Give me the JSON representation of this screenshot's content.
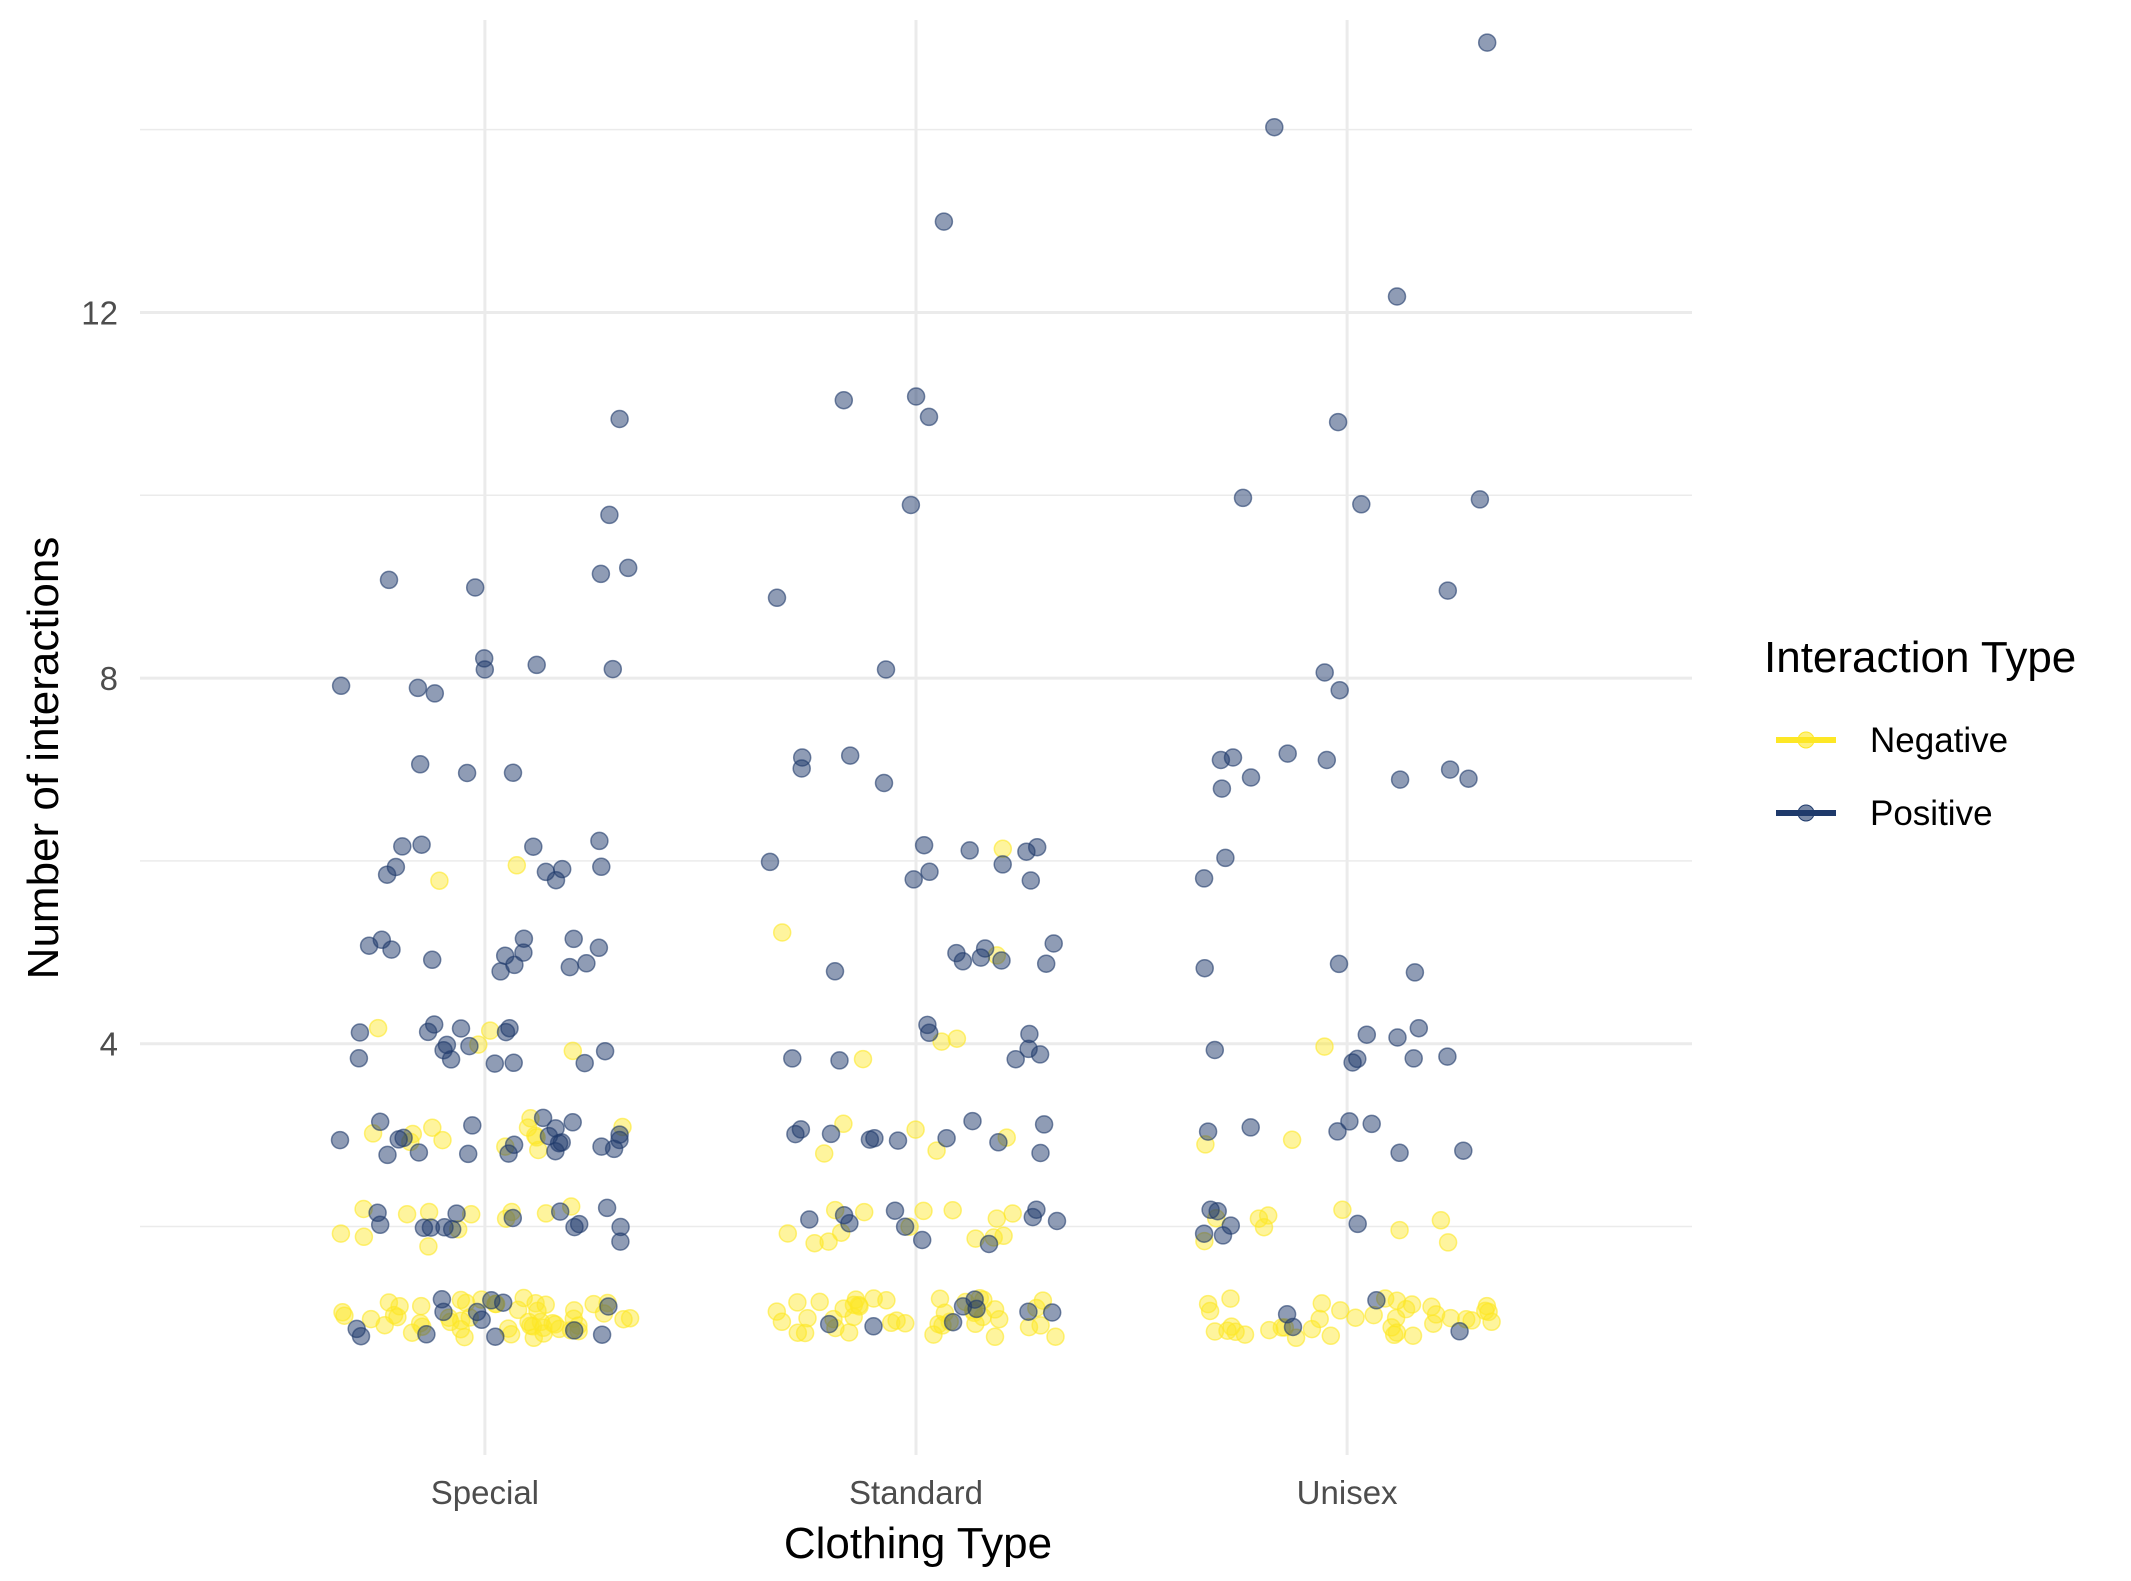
{
  "chart_data": {
    "type": "scatter",
    "title": "",
    "xlabel": "Clothing Type",
    "ylabel": "Number of interactions",
    "categories": [
      "Special",
      "Standard",
      "Unisex"
    ],
    "y_ticks": [
      "4",
      "8",
      "12"
    ],
    "ylim": [
      -0.5,
      15.2
    ],
    "grid": true,
    "jitter": true,
    "legend": {
      "title": "Interaction Type",
      "position": "right",
      "entries": [
        "Negative",
        "Positive"
      ]
    },
    "colors": {
      "Negative": "#fde725",
      "Positive": "#1f3a6b"
    },
    "series": [
      {
        "name": "Negative",
        "points": [
          {
            "category": "Special",
            "y": [
              1,
              1,
              1,
              1,
              1,
              1,
              1,
              1,
              1,
              1,
              1,
              1,
              1,
              1,
              1,
              1,
              1,
              1,
              1,
              1,
              1,
              1,
              1,
              1,
              1,
              1,
              1,
              1,
              1,
              1,
              1,
              1,
              1,
              1,
              1,
              1,
              1,
              1,
              1,
              1,
              1,
              1,
              1,
              1,
              1,
              1,
              1,
              1,
              1,
              1,
              2,
              2,
              2,
              2,
              2,
              2,
              2,
              2,
              2,
              2,
              2,
              2,
              3,
              3,
              3,
              3,
              3,
              3,
              3,
              3,
              3,
              3,
              3,
              3,
              4,
              4,
              4,
              4,
              6,
              6
            ]
          },
          {
            "category": "Standard",
            "y": [
              1,
              1,
              1,
              1,
              1,
              1,
              1,
              1,
              1,
              1,
              1,
              1,
              1,
              1,
              1,
              1,
              1,
              1,
              1,
              1,
              1,
              1,
              1,
              1,
              1,
              1,
              1,
              1,
              1,
              1,
              1,
              1,
              1,
              1,
              1,
              1,
              1,
              1,
              1,
              1,
              1,
              1,
              2,
              2,
              2,
              2,
              2,
              2,
              2,
              2,
              2,
              2,
              2,
              2,
              2,
              2,
              3,
              3,
              3,
              3,
              3,
              4,
              4,
              4,
              5,
              5,
              6
            ]
          },
          {
            "category": "Unisex",
            "y": [
              1,
              1,
              1,
              1,
              1,
              1,
              1,
              1,
              1,
              1,
              1,
              1,
              1,
              1,
              1,
              1,
              1,
              1,
              1,
              1,
              1,
              1,
              1,
              1,
              1,
              1,
              1,
              1,
              1,
              1,
              1,
              1,
              1,
              1,
              1,
              1,
              1,
              1,
              2,
              2,
              2,
              2,
              2,
              2,
              2,
              2,
              2,
              3,
              3,
              4
            ]
          }
        ]
      },
      {
        "name": "Positive",
        "points": [
          {
            "category": "Special",
            "y": [
              1,
              1,
              1,
              1,
              1,
              1,
              1,
              1,
              1,
              1,
              1,
              1,
              1,
              2,
              2,
              2,
              2,
              2,
              2,
              2,
              2,
              2,
              2,
              2,
              2,
              2,
              2,
              3,
              3,
              3,
              3,
              3,
              3,
              3,
              3,
              3,
              3,
              3,
              3,
              3,
              3,
              3,
              3,
              3,
              3,
              3,
              3,
              3,
              4,
              4,
              4,
              4,
              4,
              4,
              4,
              4,
              4,
              4,
              4,
              4,
              4,
              4,
              4,
              5,
              5,
              5,
              5,
              5,
              5,
              5,
              5,
              5,
              5,
              5,
              5,
              5,
              6,
              6,
              6,
              6,
              6,
              6,
              6,
              6,
              6,
              6,
              7,
              7,
              7,
              8,
              8,
              8,
              8,
              8,
              8,
              8,
              9,
              9,
              9,
              9,
              10,
              11
            ]
          },
          {
            "category": "Standard",
            "y": [
              1,
              1,
              1,
              1,
              1,
              1,
              1,
              1,
              2,
              2,
              2,
              2,
              2,
              2,
              2,
              2,
              2,
              2,
              3,
              3,
              3,
              3,
              3,
              3,
              3,
              3,
              3,
              3,
              3,
              4,
              4,
              4,
              4,
              4,
              4,
              4,
              4,
              5,
              5,
              5,
              5,
              5,
              5,
              5,
              5,
              6,
              6,
              6,
              6,
              6,
              6,
              6,
              6,
              6,
              7,
              7,
              7,
              7,
              8,
              9,
              10,
              11,
              11,
              11,
              13
            ]
          },
          {
            "category": "Unisex",
            "y": [
              1,
              1,
              1,
              1,
              2,
              2,
              2,
              2,
              2,
              2,
              3,
              3,
              3,
              3,
              3,
              3,
              3,
              4,
              4,
              4,
              4,
              4,
              4,
              4,
              4,
              5,
              5,
              5,
              6,
              6,
              7,
              7,
              7,
              7,
              7,
              7,
              7,
              7,
              7,
              8,
              8,
              9,
              10,
              10,
              10,
              11,
              12,
              14,
              15
            ]
          }
        ]
      }
    ]
  }
}
